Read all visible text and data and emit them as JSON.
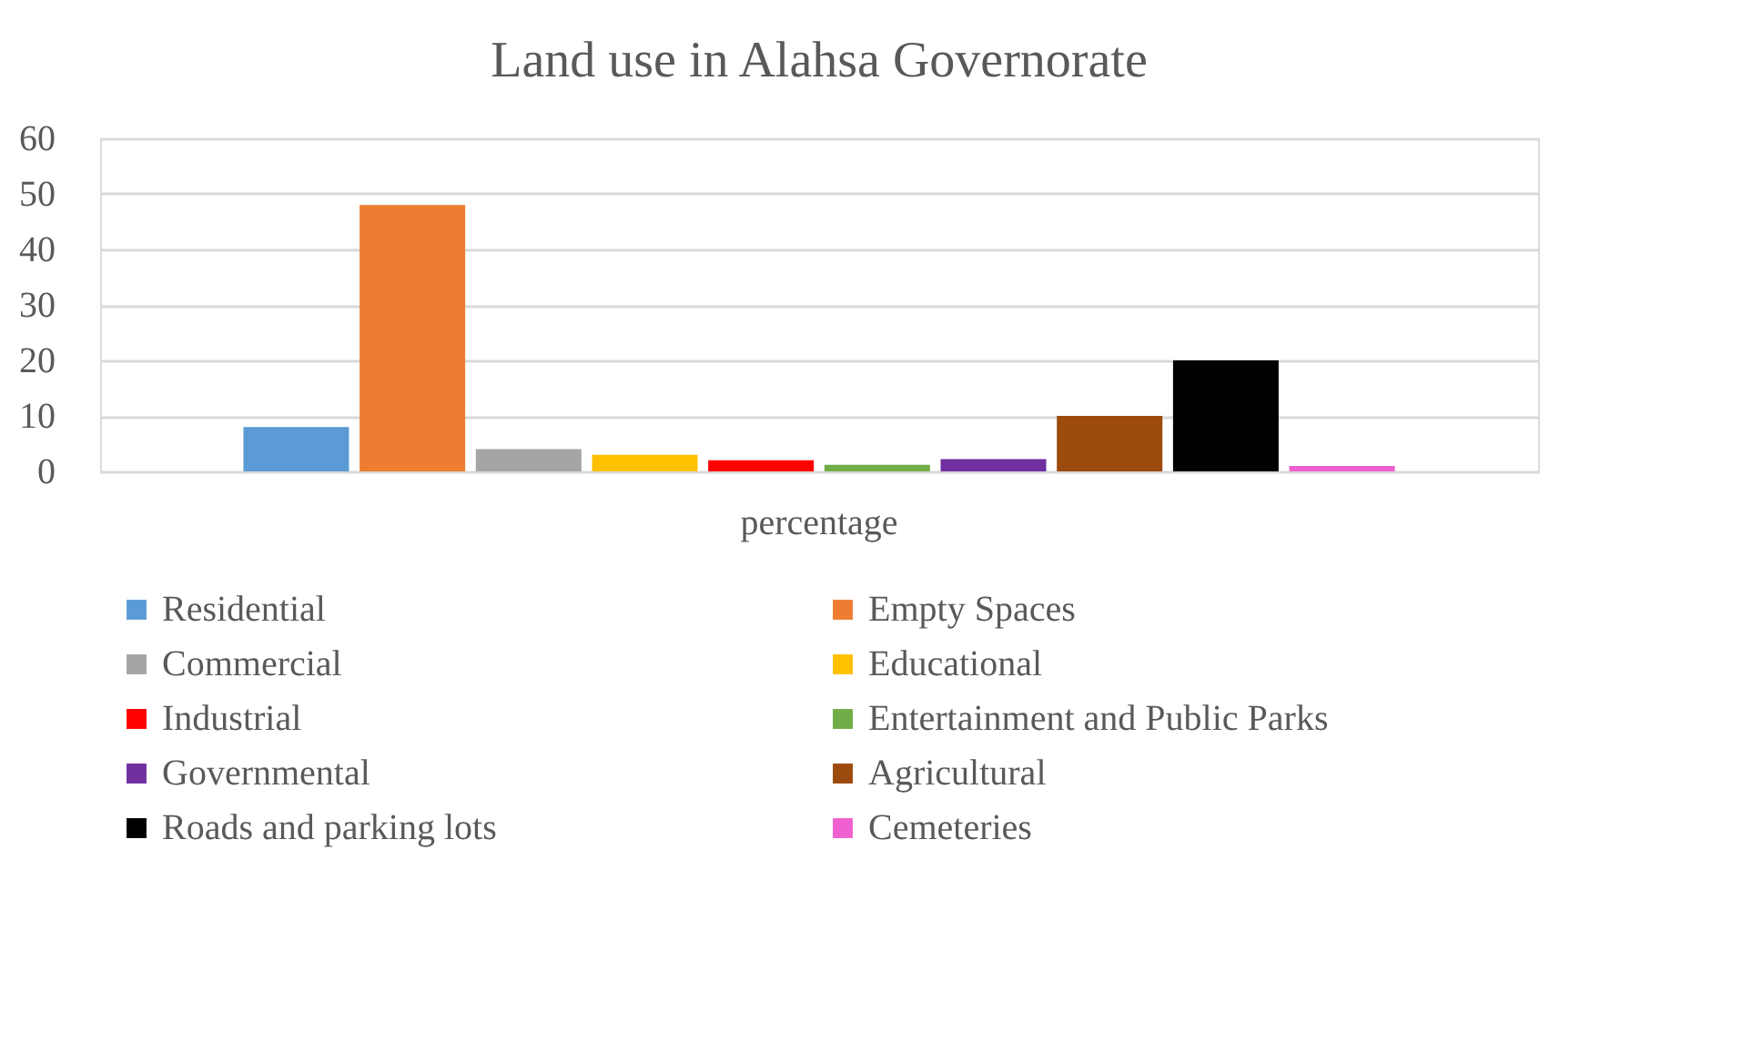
{
  "chart_data": {
    "type": "bar",
    "title": "Land use in Alahsa Governorate",
    "categories": [
      "percentage"
    ],
    "series": [
      {
        "name": "Residential",
        "color": "#5b9bd5",
        "values": [
          8
        ]
      },
      {
        "name": "Empty Spaces",
        "color": "#ed7d31",
        "values": [
          48
        ]
      },
      {
        "name": "Commercial",
        "color": "#a5a5a5",
        "values": [
          4
        ]
      },
      {
        "name": "Educational",
        "color": "#ffc000",
        "values": [
          3
        ]
      },
      {
        "name": "Industrial",
        "color": "#ff0000",
        "values": [
          2
        ]
      },
      {
        "name": "Entertainment and Public Parks",
        "color": "#70ad47",
        "values": [
          1.2
        ]
      },
      {
        "name": "Governmental",
        "color": "#7030a0",
        "values": [
          2.2
        ]
      },
      {
        "name": "Agricultural",
        "color": "#9c4a0e",
        "values": [
          10
        ]
      },
      {
        "name": "Roads and parking lots",
        "color": "#000000",
        "values": [
          20
        ]
      },
      {
        "name": "Cemeteries",
        "color": "#f060d0",
        "values": [
          1
        ]
      }
    ],
    "ylim": [
      0,
      60
    ],
    "yticks": [
      0,
      10,
      20,
      30,
      40,
      50,
      60
    ],
    "grid": "y",
    "legend": "bottom"
  }
}
